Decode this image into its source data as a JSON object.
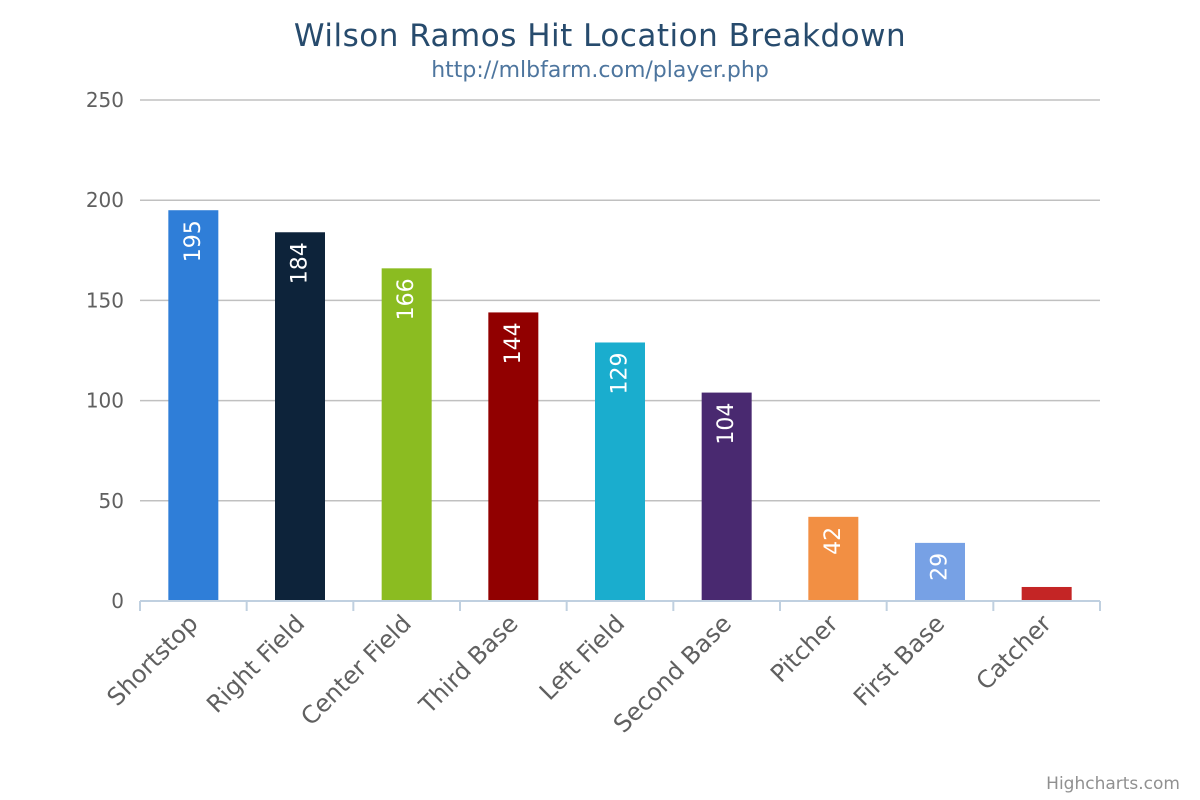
{
  "title": "Wilson Ramos Hit Location Breakdown",
  "subtitle": "http://mlbfarm.com/player.php",
  "credits": "Highcharts.com",
  "chart_data": {
    "type": "bar",
    "categories": [
      "Shortstop",
      "Right Field",
      "Center Field",
      "Third Base",
      "Left Field",
      "Second Base",
      "Pitcher",
      "First Base",
      "Catcher"
    ],
    "values": [
      195,
      184,
      166,
      144,
      129,
      104,
      42,
      29,
      7
    ],
    "data_labels": [
      "195",
      "184",
      "166",
      "144",
      "129",
      "104",
      "42",
      "29",
      ""
    ],
    "colors": [
      "#2f7ed8",
      "#0d233a",
      "#8bbc21",
      "#910000",
      "#1aadce",
      "#492970",
      "#f28f43",
      "#77a1e5",
      "#c42525"
    ],
    "y_ticks": [
      0,
      50,
      100,
      150,
      200,
      250
    ],
    "ylim": [
      0,
      250
    ],
    "grid": true,
    "legend": "none"
  }
}
